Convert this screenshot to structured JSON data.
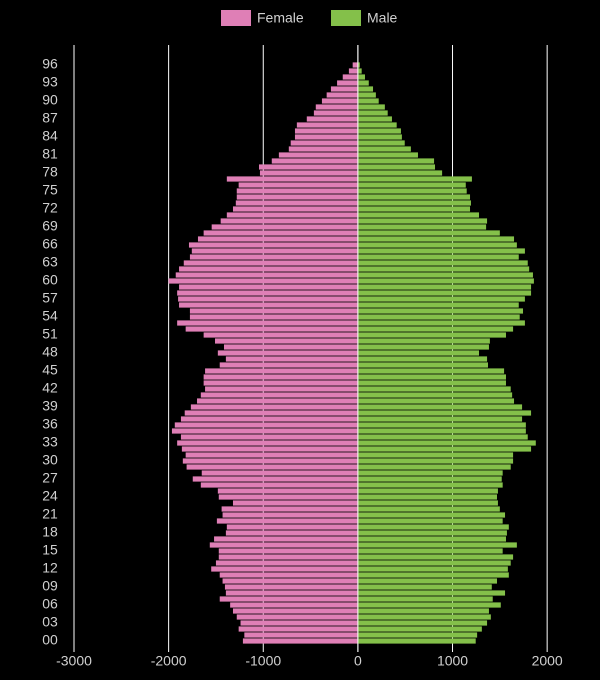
{
  "chart_data": {
    "type": "pyramid",
    "legend_position": "top",
    "grid": true,
    "categories": [
      "00",
      null,
      null,
      "03",
      null,
      null,
      "06",
      null,
      null,
      "09",
      null,
      null,
      "12",
      null,
      null,
      "15",
      null,
      null,
      "18",
      null,
      null,
      "21",
      null,
      null,
      "24",
      null,
      null,
      "27",
      null,
      null,
      "30",
      null,
      null,
      "33",
      null,
      null,
      "36",
      null,
      null,
      "39",
      null,
      null,
      "42",
      null,
      null,
      "45",
      null,
      null,
      "48",
      null,
      null,
      "51",
      null,
      null,
      "54",
      null,
      null,
      "57",
      null,
      null,
      "60",
      null,
      null,
      "63",
      null,
      null,
      "66",
      null,
      null,
      "69",
      null,
      null,
      "72",
      null,
      null,
      "75",
      null,
      null,
      "78",
      null,
      null,
      "81",
      null,
      null,
      "84",
      null,
      null,
      "87",
      null,
      null,
      "90",
      null,
      null,
      "93",
      null,
      null,
      "96"
    ],
    "series": [
      {
        "name": "Female",
        "color": "#df7fb6",
        "values": [
          -1215,
          -1200,
          -1260,
          -1240,
          -1280,
          -1320,
          -1350,
          -1460,
          -1395,
          -1405,
          -1430,
          -1460,
          -1550,
          -1500,
          -1470,
          -1470,
          -1565,
          -1520,
          -1395,
          -1385,
          -1490,
          -1430,
          -1440,
          -1320,
          -1470,
          -1480,
          -1660,
          -1745,
          -1650,
          -1810,
          -1850,
          -1820,
          -1860,
          -1910,
          -1870,
          -1965,
          -1935,
          -1870,
          -1830,
          -1765,
          -1700,
          -1660,
          -1615,
          -1630,
          -1630,
          -1615,
          -1460,
          -1395,
          -1480,
          -1415,
          -1510,
          -1630,
          -1820,
          -1910,
          -1775,
          -1775,
          -1890,
          -1900,
          -1910,
          -1890,
          -2000,
          -1925,
          -1890,
          -1840,
          -1775,
          -1755,
          -1785,
          -1690,
          -1630,
          -1545,
          -1450,
          -1385,
          -1320,
          -1290,
          -1280,
          -1280,
          -1260,
          -1385,
          -1035,
          -1045,
          -910,
          -835,
          -730,
          -710,
          -665,
          -665,
          -645,
          -540,
          -465,
          -445,
          -380,
          -330,
          -285,
          -220,
          -160,
          -95,
          -55
        ]
      },
      {
        "name": "Male",
        "color": "#84c04a",
        "values": [
          1245,
          1260,
          1310,
          1365,
          1405,
          1385,
          1510,
          1425,
          1555,
          1415,
          1470,
          1595,
          1585,
          1615,
          1640,
          1530,
          1680,
          1565,
          1575,
          1595,
          1530,
          1555,
          1500,
          1480,
          1470,
          1480,
          1530,
          1520,
          1530,
          1615,
          1640,
          1640,
          1830,
          1880,
          1795,
          1775,
          1775,
          1735,
          1830,
          1735,
          1650,
          1630,
          1615,
          1565,
          1565,
          1545,
          1375,
          1365,
          1280,
          1385,
          1395,
          1565,
          1640,
          1765,
          1710,
          1745,
          1700,
          1765,
          1830,
          1830,
          1860,
          1850,
          1810,
          1795,
          1700,
          1765,
          1680,
          1650,
          1500,
          1355,
          1365,
          1280,
          1185,
          1195,
          1185,
          1150,
          1140,
          1205,
          890,
          815,
          805,
          635,
          560,
          495,
          465,
          455,
          410,
          360,
          315,
          285,
          220,
          190,
          160,
          115,
          75,
          40,
          20
        ]
      }
    ],
    "xlim": [
      -3000,
      2400
    ],
    "xticks": [
      -3000,
      -2000,
      -1000,
      0,
      1000,
      2000
    ]
  }
}
